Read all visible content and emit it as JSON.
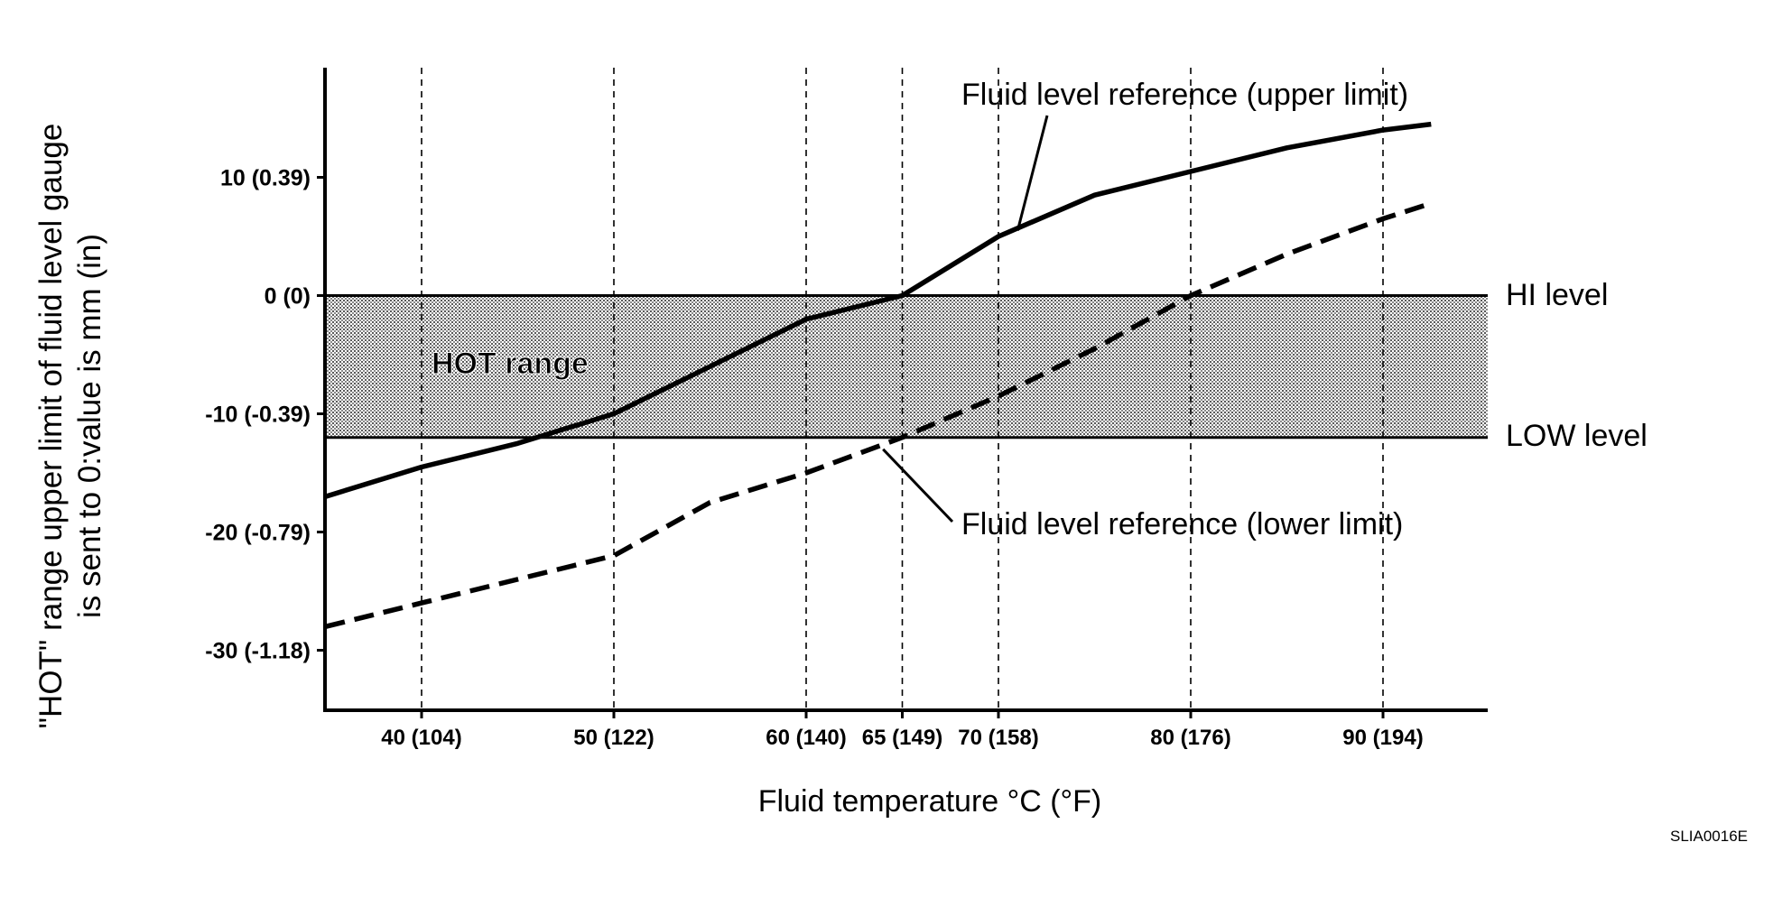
{
  "chart_data": {
    "type": "line",
    "xlabel": "Fluid temperature °C (°F)",
    "ylabel_lines": [
      "\"HOT\" range upper limit of fluid level gauge",
      "is sent to 0:value is mm (in)"
    ],
    "xlim": [
      35,
      100
    ],
    "ylim": [
      -35,
      20
    ],
    "x_ticks": [
      {
        "value": 40,
        "label": "40 (104)"
      },
      {
        "value": 50,
        "label": "50 (122)"
      },
      {
        "value": 60,
        "label": "60 (140)"
      },
      {
        "value": 65,
        "label": "65 (149)"
      },
      {
        "value": 70,
        "label": "70 (158)"
      },
      {
        "value": 80,
        "label": "80 (176)"
      },
      {
        "value": 90,
        "label": "90 (194)"
      }
    ],
    "y_ticks": [
      {
        "value": 10,
        "label": "10 (0.39)"
      },
      {
        "value": 0,
        "label": "0 (0)"
      },
      {
        "value": -10,
        "label": "-10 (-0.39)"
      },
      {
        "value": -20,
        "label": "-20 (-0.79)"
      },
      {
        "value": -30,
        "label": "-30 (-1.18)"
      }
    ],
    "grid": "vertical dashed at x ticks",
    "series": [
      {
        "name": "Fluid level reference (upper limit)",
        "style": "solid",
        "x": [
          35,
          40,
          45,
          50,
          60,
          65,
          70,
          75,
          80,
          85,
          90,
          92.5
        ],
        "y": [
          -17,
          -14.5,
          -12.5,
          -10,
          -2,
          0,
          5,
          8.5,
          10.5,
          12.5,
          14,
          14.5
        ]
      },
      {
        "name": "Fluid level reference (lower limit)",
        "style": "dashed",
        "x": [
          35,
          40,
          50,
          55,
          60,
          65,
          70,
          75,
          80,
          85,
          90,
          92.5
        ],
        "y": [
          -28,
          -26,
          -22,
          -17.5,
          -15,
          -12,
          -8.5,
          -4.5,
          0,
          3.5,
          6.5,
          7.8
        ]
      }
    ],
    "bands": [
      {
        "label": "HOT range",
        "y_from": -12,
        "y_to": 0
      }
    ],
    "reference_lines": [
      {
        "label": "HI level",
        "y": 0
      },
      {
        "label": "LOW level",
        "y": -12
      }
    ],
    "annotations": {
      "upper_leader": "Fluid level reference (upper limit)",
      "lower_leader": "Fluid level reference (lower limit)"
    },
    "figure_id": "SLIA0016E"
  }
}
